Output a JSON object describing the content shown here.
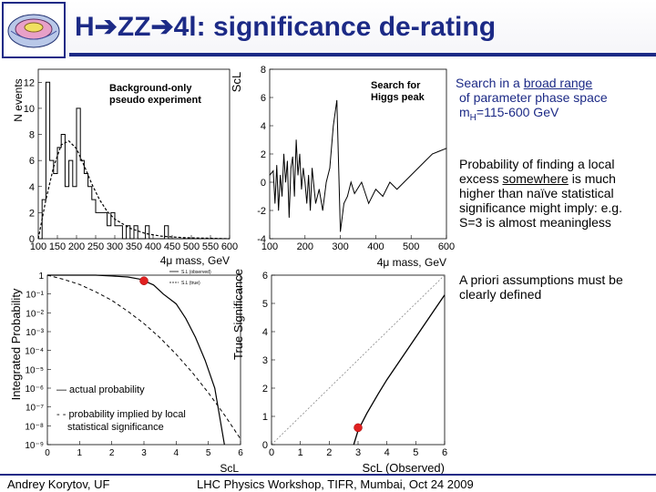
{
  "header": {
    "title_h": "H",
    "title_zz": "ZZ",
    "title_4l": "4l",
    "title_rest": ": significance de-rating"
  },
  "bullets": [
    {
      "text_1": "Search in a ",
      "underline_1": "broad range",
      "text_2": "of parameter phase space",
      "text_3_main": "m",
      "text_3_sub": "H",
      "text_3_rest": "=115-600 GeV"
    },
    {
      "text_1": "Probability of finding a local excess ",
      "underline_1": "somewhere",
      "text_2": " is much higher than naïve statistical significance might imply:",
      "text_3": " e.g. S=3 is almost meaningless"
    },
    {
      "text_1": "A priori assumptions must be clearly defined"
    }
  ],
  "footer": {
    "author": "Andrey Korytov, UF",
    "event": "LHC Physics Workshop, TIFR, Mumbai, Oct 24 2009"
  },
  "chart_data": [
    {
      "type": "bar",
      "annotation": "Background-only pseudo experiment",
      "ylabel": "N events",
      "xlabel": "4μ mass, GeV",
      "xlim": [
        100,
        600
      ],
      "ylim": [
        0,
        13
      ],
      "xticks": [
        "100",
        "150",
        "200",
        "250",
        "300",
        "350",
        "400",
        "450",
        "500",
        "550",
        "600"
      ],
      "yticks": [
        "0",
        "2",
        "4",
        "6",
        "8",
        "10",
        "12"
      ],
      "bin_width": 10,
      "x": [
        100,
        110,
        120,
        130,
        140,
        150,
        160,
        170,
        180,
        190,
        200,
        210,
        220,
        230,
        240,
        250,
        260,
        270,
        280,
        290,
        300,
        310,
        320,
        330,
        340,
        350,
        360,
        370,
        380,
        390,
        400,
        410,
        420,
        430,
        440,
        450,
        460,
        470,
        480,
        490,
        500,
        510,
        520,
        530,
        540,
        550,
        560,
        570,
        580,
        590
      ],
      "values": [
        0,
        3,
        12,
        6,
        5,
        7,
        8,
        4,
        6,
        4,
        10,
        6,
        5,
        4,
        3,
        2,
        2,
        2,
        1,
        2,
        1,
        1,
        0,
        1,
        0,
        1,
        0,
        0,
        1,
        0,
        0,
        0,
        0,
        1,
        0,
        0,
        0,
        0,
        0,
        0,
        0,
        0,
        0,
        0,
        0,
        0,
        0,
        0,
        0,
        0
      ],
      "fit_curve_x": [
        100,
        120,
        140,
        160,
        180,
        200,
        220,
        240,
        260,
        280,
        300,
        340,
        380,
        420,
        480,
        600
      ],
      "fit_curve_y": [
        0,
        3,
        5.5,
        7.2,
        7.5,
        6.9,
        5.6,
        4.2,
        3.0,
        2.1,
        1.5,
        0.8,
        0.4,
        0.2,
        0.08,
        0.0
      ]
    },
    {
      "type": "line",
      "annotation": "Search for Higgs peak",
      "ylabel": "ScL",
      "xlabel": "4μ mass, GeV",
      "xlim": [
        100,
        600
      ],
      "ylim": [
        -4,
        8
      ],
      "xticks": [
        "100",
        "200",
        "300",
        "400",
        "500",
        "600"
      ],
      "yticks": [
        "-4",
        "-2",
        "0",
        "2",
        "4",
        "6",
        "8"
      ],
      "x": [
        100,
        110,
        115,
        120,
        125,
        130,
        135,
        140,
        145,
        150,
        155,
        160,
        165,
        170,
        175,
        180,
        185,
        190,
        195,
        200,
        205,
        210,
        215,
        220,
        230,
        240,
        250,
        260,
        270,
        280,
        290,
        300,
        310,
        320,
        330,
        340,
        360,
        380,
        400,
        420,
        440,
        460,
        480,
        500,
        520,
        540,
        560,
        580,
        600
      ],
      "values": [
        0.5,
        0.8,
        -1.5,
        1.2,
        -2.0,
        0.5,
        -1.0,
        2.0,
        0.0,
        1.5,
        -2.5,
        1.0,
        1.8,
        -1.0,
        3.0,
        0.5,
        2.0,
        -0.5,
        1.0,
        0.0,
        -1.5,
        0.5,
        -2.0,
        1.0,
        -1.5,
        -0.5,
        -2.0,
        0.0,
        1.0,
        4.0,
        5.8,
        -3.5,
        -1.5,
        -1.0,
        0.0,
        -0.8,
        0.0,
        -1.5,
        -0.5,
        -1.0,
        0.0,
        -0.5,
        0.0,
        0.5,
        1.0,
        1.5,
        2.0,
        2.2,
        2.4
      ]
    },
    {
      "type": "line",
      "ylabel": "Integrated Probability",
      "xlabel": "ScL",
      "xlim": [
        0,
        6
      ],
      "ylim": [
        1e-09,
        1
      ],
      "log_y": true,
      "xticks": [
        "0",
        "1",
        "2",
        "3",
        "4",
        "5",
        "6"
      ],
      "yticks": [
        "10⁻⁹",
        "10⁻⁸",
        "10⁻⁷",
        "10⁻⁶",
        "10⁻⁵",
        "10⁻⁴",
        "10⁻³",
        "10⁻²",
        "10⁻¹",
        "1"
      ],
      "legend_inner": [
        "S.L (observed)",
        "S.L (true)"
      ],
      "legend_outer": [
        "— actual probability",
        "- - probability implied by local statistical significance"
      ],
      "series": [
        {
          "name": "actual probability",
          "x": [
            0,
            1,
            1.5,
            2,
            2.5,
            2.9,
            3.3,
            3.6,
            4.0,
            4.3,
            4.6,
            4.9,
            5.2,
            5.5
          ],
          "values": [
            1,
            1,
            1,
            0.9,
            0.8,
            0.6,
            0.3,
            0.1,
            0.03,
            0.005,
            0.0005,
            3e-05,
            1e-06,
            1e-09
          ]
        },
        {
          "name": "probability implied by local statistical significance",
          "x": [
            0,
            0.5,
            1,
            1.5,
            2,
            2.5,
            3,
            3.5,
            4,
            4.5,
            5,
            5.5,
            6
          ],
          "values": [
            1,
            0.6,
            0.32,
            0.13,
            0.046,
            0.012,
            0.0027,
            0.00047,
            6.3e-05,
            6.8e-06,
            5.7e-07,
            3.8e-08,
            2e-09
          ]
        }
      ],
      "marker": {
        "x": 3.0,
        "y": 0.5
      }
    },
    {
      "type": "line",
      "ylabel": "True Significance",
      "xlabel": "ScL (Observed)",
      "xlim": [
        0,
        6
      ],
      "ylim": [
        0,
        6
      ],
      "xticks": [
        "0",
        "1",
        "2",
        "3",
        "4",
        "5",
        "6"
      ],
      "yticks": [
        "0",
        "1",
        "2",
        "3",
        "4",
        "5",
        "6"
      ],
      "series": [
        {
          "name": "actual",
          "x": [
            2.85,
            3.0,
            3.3,
            3.7,
            4.0,
            4.4,
            4.8,
            5.2,
            5.6,
            6.0
          ],
          "values": [
            0,
            0.5,
            1.1,
            1.8,
            2.3,
            2.9,
            3.5,
            4.1,
            4.7,
            5.3
          ]
        },
        {
          "name": "diagonal",
          "x": [
            0,
            6
          ],
          "values": [
            0,
            6
          ]
        }
      ],
      "marker": {
        "x": 3.0,
        "y": 0.6
      }
    }
  ]
}
